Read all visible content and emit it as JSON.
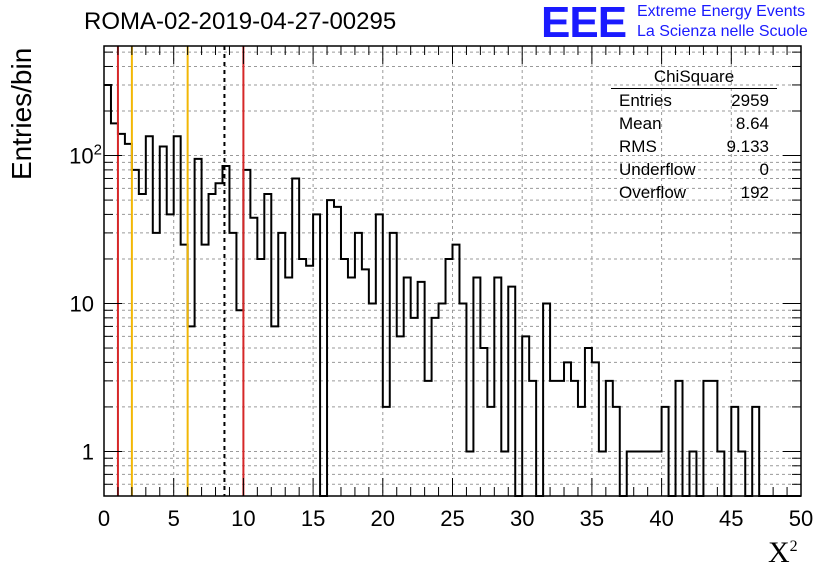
{
  "title": "ROMA-02-2019-04-27-00295",
  "logo": {
    "mark": "EEE",
    "line1": "Extreme Energy Events",
    "line2": "La Scienza nelle Scuole",
    "color": "#1a1aff"
  },
  "stats_box": {
    "title": "ChiSquare",
    "rows": [
      {
        "label": "Entries",
        "value": "2959"
      },
      {
        "label": "Mean",
        "value": "8.64"
      },
      {
        "label": "RMS",
        "value": "9.133"
      },
      {
        "label": "Underflow",
        "value": "0"
      },
      {
        "label": "Overflow",
        "value": "192"
      }
    ]
  },
  "chart_data": {
    "type": "histogram",
    "title": "ROMA-02-2019-04-27-00295",
    "xlabel": "X",
    "xlabel_superscript": "2",
    "ylabel": "Entries/bin",
    "xlim": [
      0,
      50
    ],
    "ylim": [
      0.5,
      550
    ],
    "y_scale": "log",
    "grid": true,
    "bin_width": 0.5,
    "x_ticks": [
      "0",
      "5",
      "10",
      "15",
      "20",
      "25",
      "30",
      "35",
      "40",
      "45",
      "50"
    ],
    "y_ticks": [
      {
        "value": 1,
        "label": "1"
      },
      {
        "value": 10,
        "label": "10"
      },
      {
        "value": 100,
        "label": "10",
        "exponent": "2"
      }
    ],
    "bin_counts": [
      300,
      165,
      140,
      120,
      80,
      55,
      135,
      30,
      115,
      40,
      135,
      25,
      7,
      95,
      25,
      55,
      65,
      85,
      30,
      9,
      80,
      38,
      20,
      55,
      7,
      30,
      15,
      70,
      20,
      18,
      40,
      0,
      50,
      45,
      20,
      15,
      30,
      17,
      10,
      40,
      2,
      30,
      6,
      15,
      8,
      14,
      3,
      8,
      10,
      20,
      25,
      10,
      1,
      15,
      5,
      2,
      15,
      1,
      13,
      0,
      6,
      3,
      0,
      10,
      3,
      3,
      4,
      3,
      2,
      5,
      4,
      1,
      3,
      2,
      0,
      1,
      1,
      1,
      1,
      1,
      2,
      0,
      3,
      0,
      1,
      0,
      3,
      3,
      1,
      0,
      2,
      1,
      0,
      2,
      0,
      0,
      0,
      0,
      0,
      0
    ],
    "vertical_lines": [
      {
        "x": 1,
        "color": "#d62728",
        "style": "solid"
      },
      {
        "x": 2,
        "color": "#f2b705",
        "style": "solid"
      },
      {
        "x": 6,
        "color": "#f2b705",
        "style": "solid"
      },
      {
        "x": 8.64,
        "color": "#000000",
        "style": "dashed"
      },
      {
        "x": 10,
        "color": "#d62728",
        "style": "solid"
      }
    ]
  }
}
